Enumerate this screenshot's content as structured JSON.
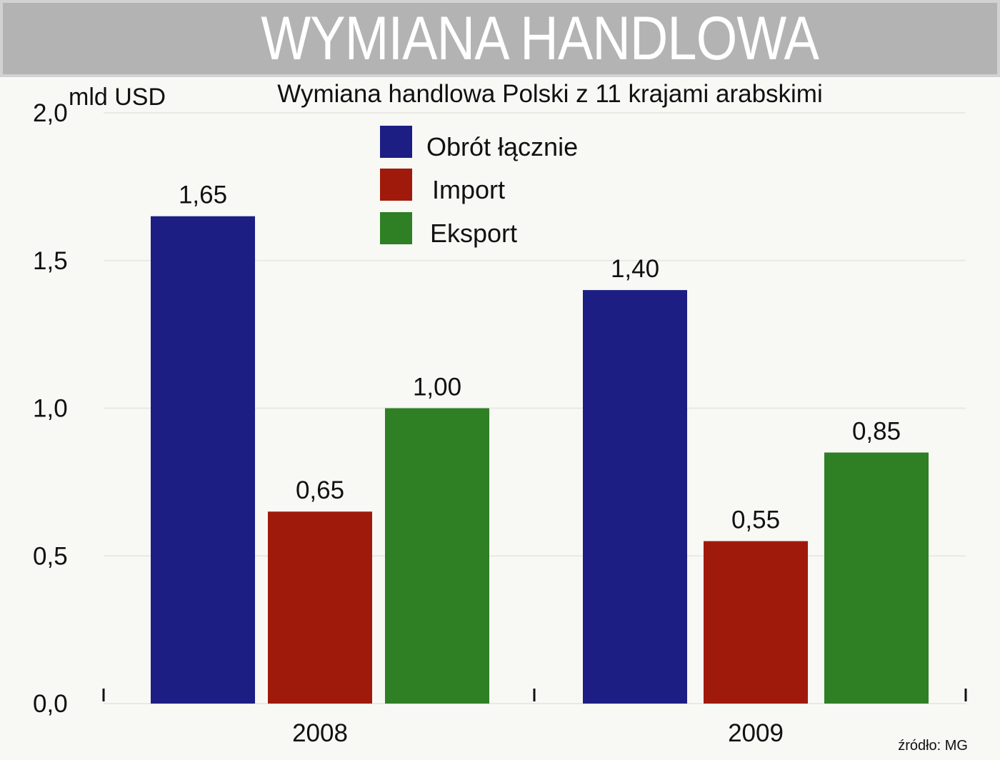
{
  "banner": {
    "title": "WYMIANA HANDLOWA"
  },
  "source": "źródło: MG",
  "chart_data": {
    "type": "bar",
    "title": "Wymiana handlowa Polski z 11 krajami arabskimi",
    "ylabel": "mld USD",
    "xlabel": "",
    "categories": [
      "2008",
      "2009"
    ],
    "series": [
      {
        "name": "Obrót łącznie",
        "color": "#1c1e84",
        "values": [
          1.65,
          1.4
        ],
        "labels": [
          "1,65",
          "1,40"
        ]
      },
      {
        "name": "Import",
        "color": "#a01a0c",
        "values": [
          0.65,
          0.55
        ],
        "labels": [
          "0,65",
          "0,55"
        ]
      },
      {
        "name": "Eksport",
        "color": "#2f7f25",
        "values": [
          1.0,
          0.85
        ],
        "labels": [
          "1,00",
          "0,85"
        ]
      }
    ],
    "ylim": [
      0,
      2.0
    ],
    "yticks": [
      0,
      0.5,
      1.0,
      1.5,
      2.0
    ],
    "ytick_labels": [
      "0,0",
      "0,5",
      "1,0",
      "1,5",
      "2,0"
    ],
    "grid": true,
    "legend": "top-center"
  }
}
